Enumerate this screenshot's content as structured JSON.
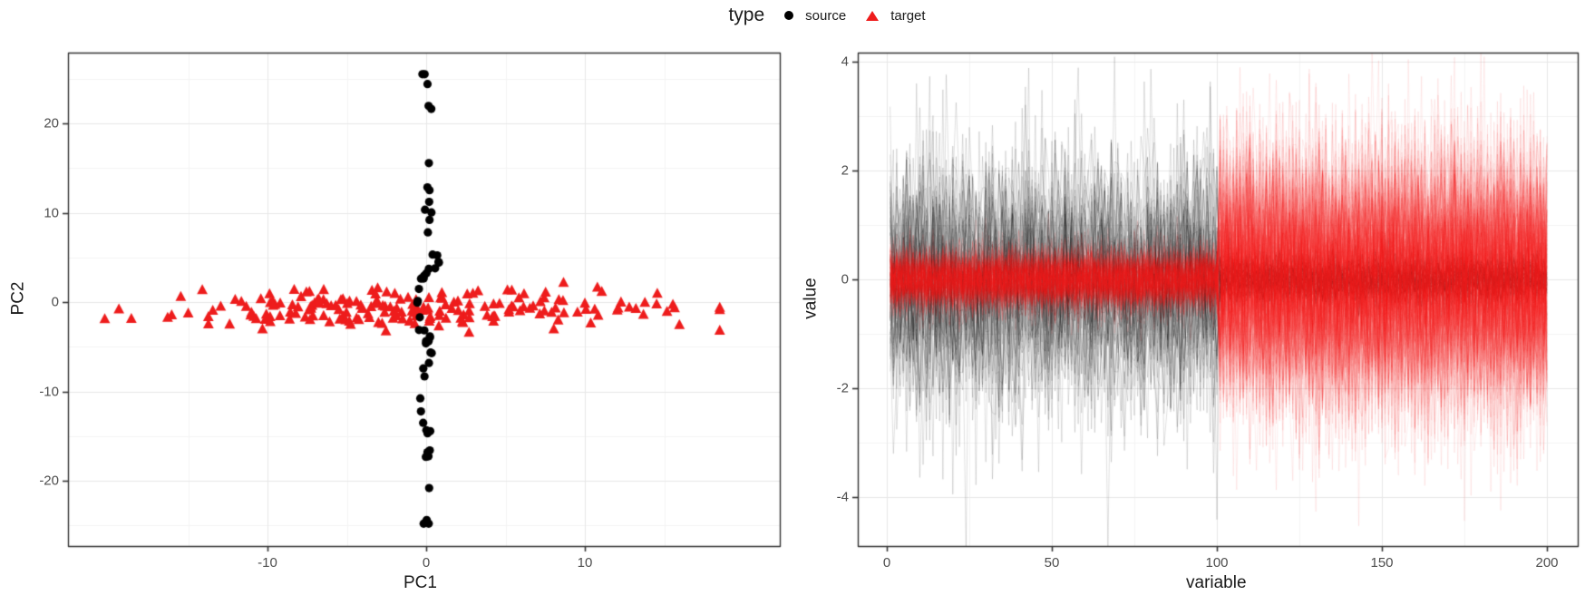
{
  "legend": {
    "title": "type",
    "items": [
      {
        "label": "source",
        "marker": "circle",
        "color": "#000000"
      },
      {
        "label": "target",
        "marker": "triangle",
        "color": "#ee1c1c"
      }
    ]
  },
  "chart_data": [
    {
      "id": "pca-scatter",
      "type": "scatter",
      "title": "",
      "xlabel": "PC1",
      "ylabel": "PC2",
      "xlim": [
        -22.5,
        22.5
      ],
      "ylim": [
        -27.5,
        28
      ],
      "xticks": [
        -10,
        0,
        10
      ],
      "yticks": [
        -20,
        -10,
        0,
        10,
        20
      ],
      "x_minor": [
        -15,
        -5,
        5,
        15
      ],
      "y_minor": [
        -25,
        -15,
        -5,
        5,
        15,
        25
      ],
      "grid": true,
      "legend_position": "top",
      "series": [
        {
          "name": "source",
          "marker": "circle",
          "color": "#000000",
          "count": 54,
          "shape": "vertical-chain",
          "pc1": {
            "mean": 0,
            "sd": 0.3,
            "min": -0.9,
            "max": 0.9
          },
          "pc2": {
            "mean": -1,
            "sd": 11,
            "min": -24.8,
            "max": 25.5
          }
        },
        {
          "name": "target",
          "marker": "triangle",
          "color": "#ee1c1c",
          "count": 200,
          "shape": "horizontal-band",
          "pc1": {
            "mean": -1,
            "sd": 8.5,
            "min": -21,
            "max": 18.5
          },
          "pc2": {
            "mean": -0.7,
            "sd": 1.05,
            "min": -3.6,
            "max": 2.2
          }
        }
      ],
      "seed": 42
    },
    {
      "id": "profile-lines",
      "type": "line",
      "title": "",
      "xlabel": "variable",
      "ylabel": "value",
      "xlim": [
        -9,
        210
      ],
      "ylim": [
        -4.9,
        4.2
      ],
      "xticks": [
        0,
        50,
        100,
        150,
        200
      ],
      "yticks": [
        -4,
        -2,
        0,
        2,
        4
      ],
      "x_minor": [
        25,
        75,
        125,
        175
      ],
      "y_minor": [
        -3,
        -1,
        1,
        3
      ],
      "grid": true,
      "points_per_line": 200,
      "series_groups": [
        {
          "name": "source",
          "color": "#000000",
          "alpha": 0.12,
          "n_lines": 50,
          "segments": [
            {
              "x_from": 1,
              "x_to": 100,
              "mean": 0,
              "sd": 1.15
            },
            {
              "x_from": 101,
              "x_to": 200,
              "mean": 0,
              "sd": 0.22
            }
          ]
        },
        {
          "name": "target",
          "color": "#ee1c1c",
          "alpha": 0.08,
          "n_lines": 200,
          "segments": [
            {
              "x_from": 1,
              "x_to": 100,
              "mean": 0,
              "sd": 0.28
            },
            {
              "x_from": 101,
              "x_to": 200,
              "mean": 0,
              "sd": 1.15
            }
          ]
        }
      ],
      "seed": 7
    }
  ]
}
